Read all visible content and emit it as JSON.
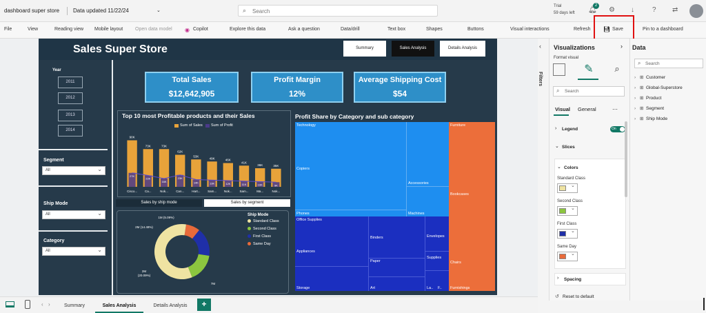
{
  "titlebar": {
    "file_name": "dashboard super store",
    "data_updated": "Data updated 11/22/24",
    "search_placeholder": "Search",
    "trial_label": "Trial",
    "trial_days": "59 days left",
    "notif_count": "2"
  },
  "ribbon": {
    "items": [
      "File",
      "View",
      "Reading view",
      "Mobile layout",
      "Open data model",
      "Copilot",
      "Explore this data",
      "Ask a question",
      "Data/drill",
      "Text box",
      "Shapes",
      "Buttons",
      "Visual interactions",
      "Refresh",
      "Save",
      "Pin to a dashboard"
    ]
  },
  "report": {
    "title": "Sales Super Store",
    "nav": [
      "Summary",
      "Sales Analysis",
      "Details Analysis"
    ],
    "year_label": "Year",
    "years": [
      "2011",
      "2012",
      "2013",
      "2014"
    ],
    "segment_label": "Segment",
    "shipmode_label": "Ship Mode",
    "category_label": "Category",
    "all": "All",
    "kpis": [
      {
        "title": "Total Sales",
        "value": "$12,642,905"
      },
      {
        "title": "Profit Margin",
        "value": "12%"
      },
      {
        "title": "Average Shipping Cost",
        "value": "$54"
      }
    ],
    "bar_title": "Top 10 most Profitable products and their Sales",
    "legend_sales": "Sum of Sales",
    "legend_profit": "Sum of Profit",
    "tab_ship": "Sales by ship mode",
    "tab_segment": "Sales by segment",
    "donut_legend_title": "Ship Mode",
    "treemap_title": "Profit Share by Category and sub category"
  },
  "chart_data": [
    {
      "type": "bar",
      "title": "Top 10 most Profitable products and their Sales",
      "categories": [
        "Cisco...",
        "Ca...",
        "Nok...",
        "Can...",
        "Hart...",
        "Sam...",
        "Nok...",
        "Sam...",
        "Ma...",
        "Nok..."
      ],
      "series": [
        {
          "name": "Sum of Sales",
          "values": [
            90,
            73,
            73,
            62,
            53,
            49,
            46,
            41,
            36,
            35
          ],
          "labels": [
            "90K",
            "73K",
            "73K",
            "62K",
            "53K",
            "49K",
            "46K",
            "41K",
            "36K",
            "35K"
          ]
        },
        {
          "name": "Sum of Profit",
          "values": [
            27,
            22,
            16,
            23,
            14,
            13,
            12,
            11,
            10,
            9
          ],
          "labels": [
            "27K",
            "22K",
            "16K",
            "23K",
            "14K",
            "13K",
            "12K",
            "11K",
            "10K",
            "9K"
          ]
        }
      ],
      "colors": [
        "#e8a33a",
        "#4a3a8a"
      ]
    },
    {
      "type": "pie",
      "title": "Ship Mode",
      "categories": [
        "Standard Class",
        "Second Class",
        "First Class",
        "Same Day"
      ],
      "values": [
        7,
        2,
        2,
        1
      ],
      "labels": [
        "7M",
        "2M (20.09%)",
        "2M (14.48%)",
        "1M (5.09%)"
      ],
      "colors": [
        "#efe3a2",
        "#8cc63f",
        "#1f2fa8",
        "#e86a3a"
      ]
    },
    {
      "type": "heatmap",
      "title": "Profit Share by Category and sub category",
      "groups": [
        {
          "name": "Technology",
          "color": "#1e8ef0",
          "children": [
            "Copiers",
            "Phones",
            "Accessories",
            "Machines"
          ]
        },
        {
          "name": "Office Supplies",
          "color": "#1b2fc0",
          "children": [
            "Appliances",
            "Storage",
            "Binders",
            "Paper",
            "Art",
            "Envelopes",
            "Supplies",
            "La..",
            "F.."
          ]
        },
        {
          "name": "Furniture",
          "color": "#ec6e3a",
          "children": [
            "Bookcases",
            "Chairs",
            "Furnishings"
          ]
        }
      ]
    }
  ],
  "visualizations": {
    "header": "Visualizations",
    "format_visual": "Format visual",
    "search_placeholder": "Search",
    "tab_visual": "Visual",
    "tab_general": "General",
    "legend": "Legend",
    "legend_toggle": "On",
    "slices": "Slices",
    "colors": "Colors",
    "color_items": [
      {
        "label": "Standard Class",
        "hex": "#efe3a2"
      },
      {
        "label": "Second Class",
        "hex": "#8cc63f"
      },
      {
        "label": "First Class",
        "hex": "#1f2fa8"
      },
      {
        "label": "Same Day",
        "hex": "#e86a3a"
      }
    ],
    "spacing": "Spacing",
    "reset": "Reset to default",
    "filters": "Filters"
  },
  "data_pane": {
    "header": "Data",
    "search_placeholder": "Search",
    "tables": [
      "Customer",
      "Global-Superstore",
      "Product",
      "Segment",
      "Ship Mode"
    ]
  },
  "tabs": [
    "Summary",
    "Sales Analysis",
    "Details Analysis"
  ],
  "tab_add": "+"
}
